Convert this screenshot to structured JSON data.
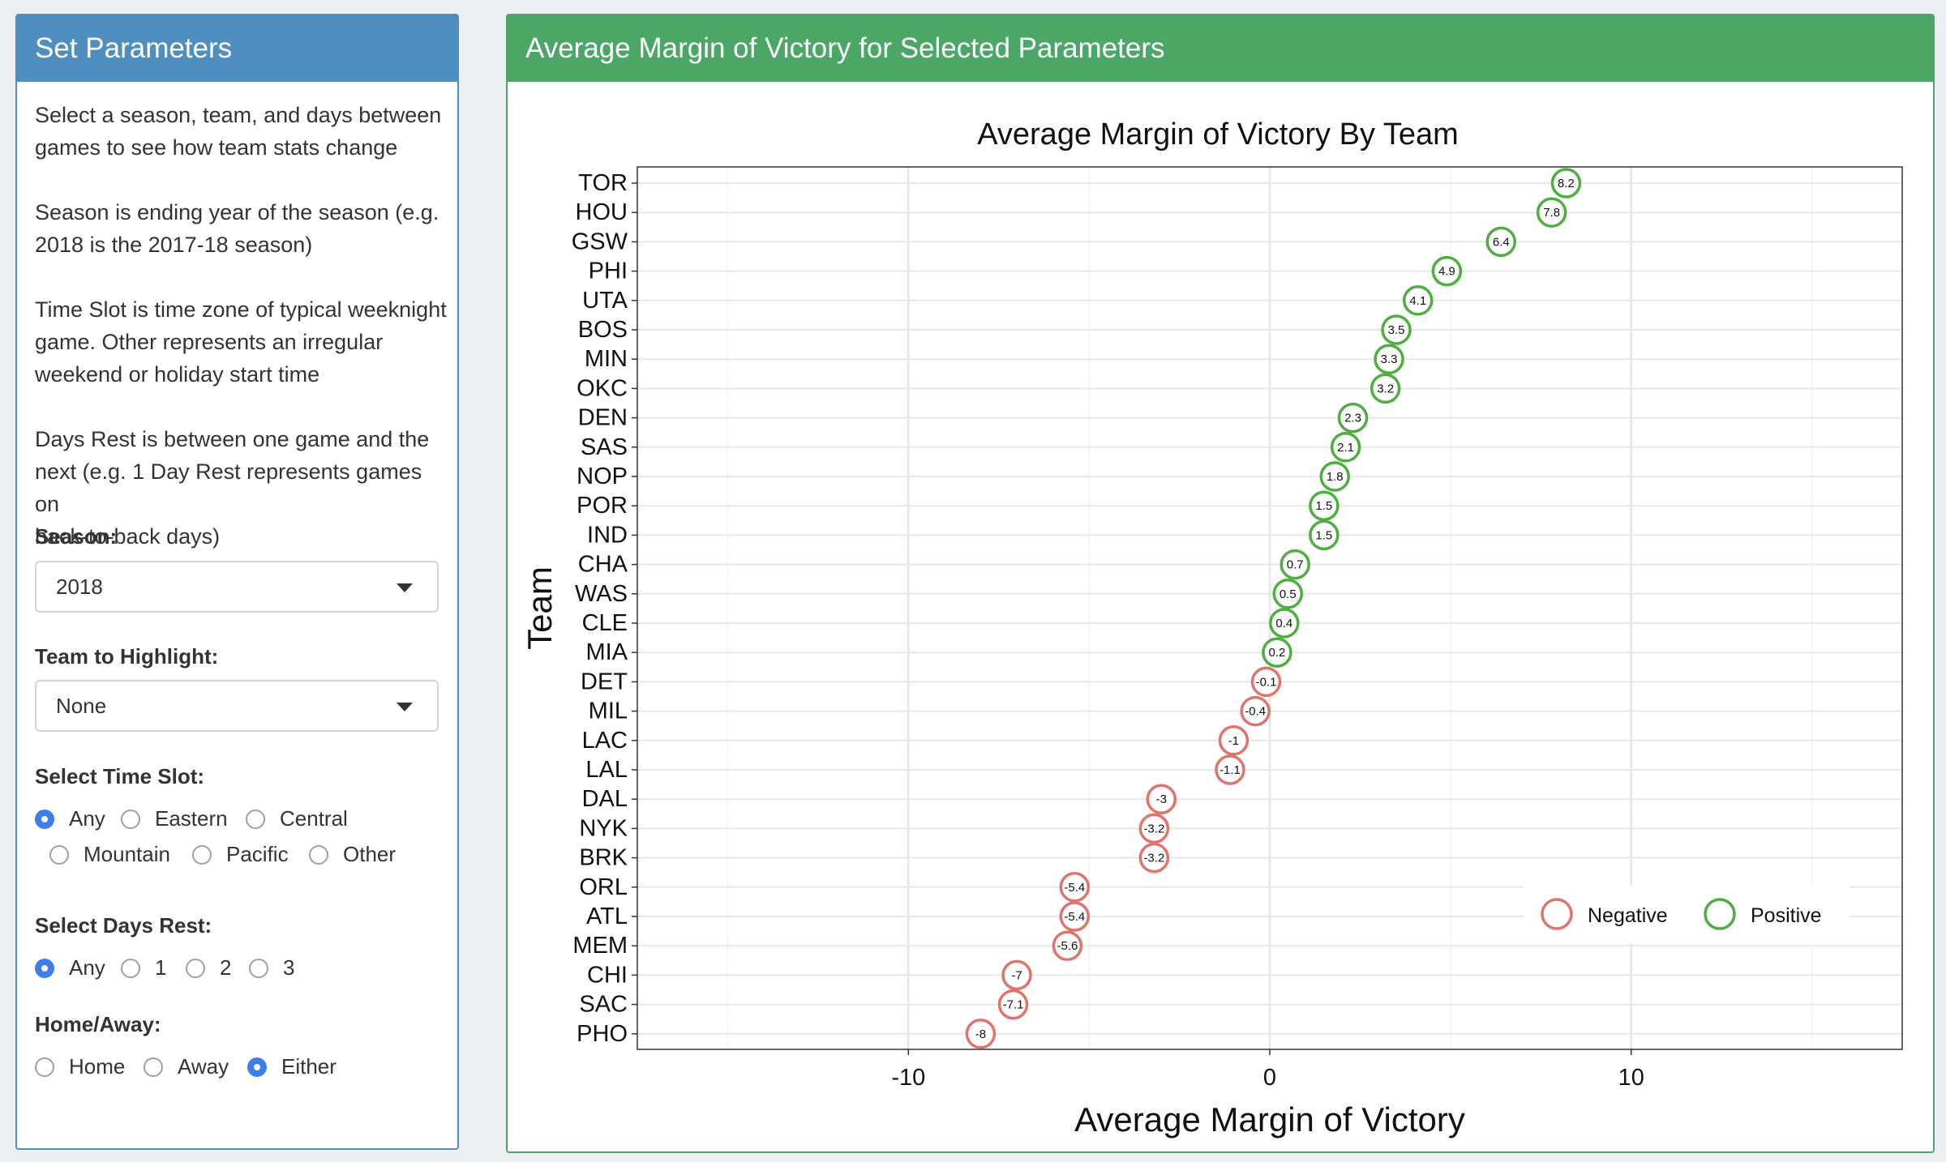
{
  "left_panel": {
    "title": "Set Parameters",
    "desc1_line1": "Select a season, team, and days between",
    "desc1_line2": "games to see how team stats change",
    "desc2_line1": "Season is ending year of the season (e.g.",
    "desc2_line2": "2018 is the 2017-18 season)",
    "desc3_line1": "Time Slot is time zone of typical weeknight",
    "desc3_line2": "game. Other represents an irregular",
    "desc3_line3": "weekend or holiday start time",
    "desc4_line1": "Days Rest is between one game and the",
    "desc4_line2": "next (e.g. 1 Day Rest represents games on",
    "desc4_line3": "back-to-back days)",
    "season_label": "Season:",
    "season_value": "2018",
    "team_label": "Team to Highlight:",
    "team_value": "None",
    "timeslot_label": "Select Time Slot:",
    "timeslot_options": [
      "Any",
      "Eastern",
      "Central",
      "Mountain",
      "Pacific",
      "Other"
    ],
    "timeslot_selected": "Any",
    "rest_label": "Select Days Rest:",
    "rest_options": [
      "Any",
      "1",
      "2",
      "3"
    ],
    "rest_selected": "Any",
    "homeaway_label": "Home/Away:",
    "homeaway_options": [
      "Home",
      "Away",
      "Either"
    ],
    "homeaway_selected": "Either"
  },
  "right_panel": {
    "title": "Average Margin of Victory for Selected Parameters"
  },
  "colors": {
    "positive": "#4caf3e",
    "negative": "#e0736a"
  },
  "chart_data": {
    "type": "scatter",
    "title": "Average Margin of Victory By Team",
    "xlabel": "Average Margin of Victory",
    "ylabel": "Team",
    "xlim": [
      -17.5,
      17.5
    ],
    "xticks": [
      -10,
      0,
      10
    ],
    "grid": true,
    "legend_position": "bottom-right",
    "legend": [
      "Negative",
      "Positive"
    ],
    "teams": [
      "TOR",
      "HOU",
      "GSW",
      "PHI",
      "UTA",
      "BOS",
      "MIN",
      "OKC",
      "DEN",
      "SAS",
      "NOP",
      "POR",
      "IND",
      "CHA",
      "WAS",
      "CLE",
      "MIA",
      "DET",
      "MIL",
      "LAC",
      "LAL",
      "DAL",
      "NYK",
      "BRK",
      "ORL",
      "ATL",
      "MEM",
      "CHI",
      "SAC",
      "PHO"
    ],
    "values": [
      8.2,
      7.8,
      6.4,
      4.9,
      4.1,
      3.5,
      3.3,
      3.2,
      2.3,
      2.1,
      1.8,
      1.5,
      1.5,
      0.7,
      0.5,
      0.4,
      0.2,
      -0.1,
      -0.4,
      -1,
      -1.1,
      -3,
      -3.2,
      -3.2,
      -5.4,
      -5.4,
      -5.6,
      -7,
      -7.1,
      -8
    ]
  }
}
